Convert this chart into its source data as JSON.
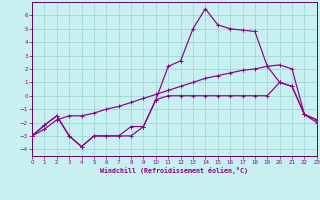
{
  "xlabel": "Windchill (Refroidissement éolien,°C)",
  "bg_color": "#c8f0f0",
  "grid_color": "#a0d8d8",
  "line_color": "#880088",
  "spine_color": "#660066",
  "xlim": [
    0,
    23
  ],
  "ylim": [
    -4.5,
    7.0
  ],
  "yticks": [
    -4,
    -3,
    -2,
    -1,
    0,
    1,
    2,
    3,
    4,
    5,
    6
  ],
  "xticks": [
    0,
    1,
    2,
    3,
    4,
    5,
    6,
    7,
    8,
    9,
    10,
    11,
    12,
    13,
    14,
    15,
    16,
    17,
    18,
    19,
    20,
    21,
    22,
    23
  ],
  "line1_x": [
    0,
    1,
    2,
    3,
    4,
    5,
    6,
    7,
    8,
    9,
    10,
    11,
    12,
    13,
    14,
    15,
    16,
    17,
    18,
    19,
    20,
    21,
    22,
    23
  ],
  "line1_y": [
    -3.0,
    -2.2,
    -1.5,
    -3.0,
    -3.8,
    -3.0,
    -3.0,
    -3.0,
    -3.0,
    -2.3,
    -0.3,
    0.0,
    0.0,
    0.0,
    0.0,
    0.0,
    0.0,
    0.0,
    0.0,
    0.0,
    1.0,
    0.7,
    -1.4,
    -1.8
  ],
  "line2_x": [
    0,
    1,
    2,
    3,
    4,
    5,
    6,
    7,
    8,
    9,
    10,
    11,
    12,
    13,
    14,
    15,
    16,
    17,
    18,
    19,
    20,
    21,
    22,
    23
  ],
  "line2_y": [
    -3.0,
    -2.5,
    -1.8,
    -1.5,
    -1.5,
    -1.3,
    -1.0,
    -0.8,
    -0.5,
    -0.2,
    0.1,
    0.4,
    0.7,
    1.0,
    1.3,
    1.5,
    1.7,
    1.9,
    2.0,
    2.2,
    2.3,
    2.0,
    -1.4,
    -2.0
  ],
  "line3_x": [
    0,
    1,
    2,
    3,
    4,
    5,
    6,
    7,
    8,
    9,
    10,
    11,
    12,
    13,
    14,
    15,
    16,
    17,
    18,
    19,
    20,
    21,
    22,
    23
  ],
  "line3_y": [
    -3.0,
    -2.2,
    -1.5,
    -3.0,
    -3.8,
    -3.0,
    -3.0,
    -3.0,
    -2.3,
    -2.3,
    -0.3,
    2.2,
    2.6,
    5.0,
    6.5,
    5.3,
    5.0,
    4.9,
    4.8,
    2.2,
    1.0,
    0.7,
    -1.4,
    -1.8
  ]
}
